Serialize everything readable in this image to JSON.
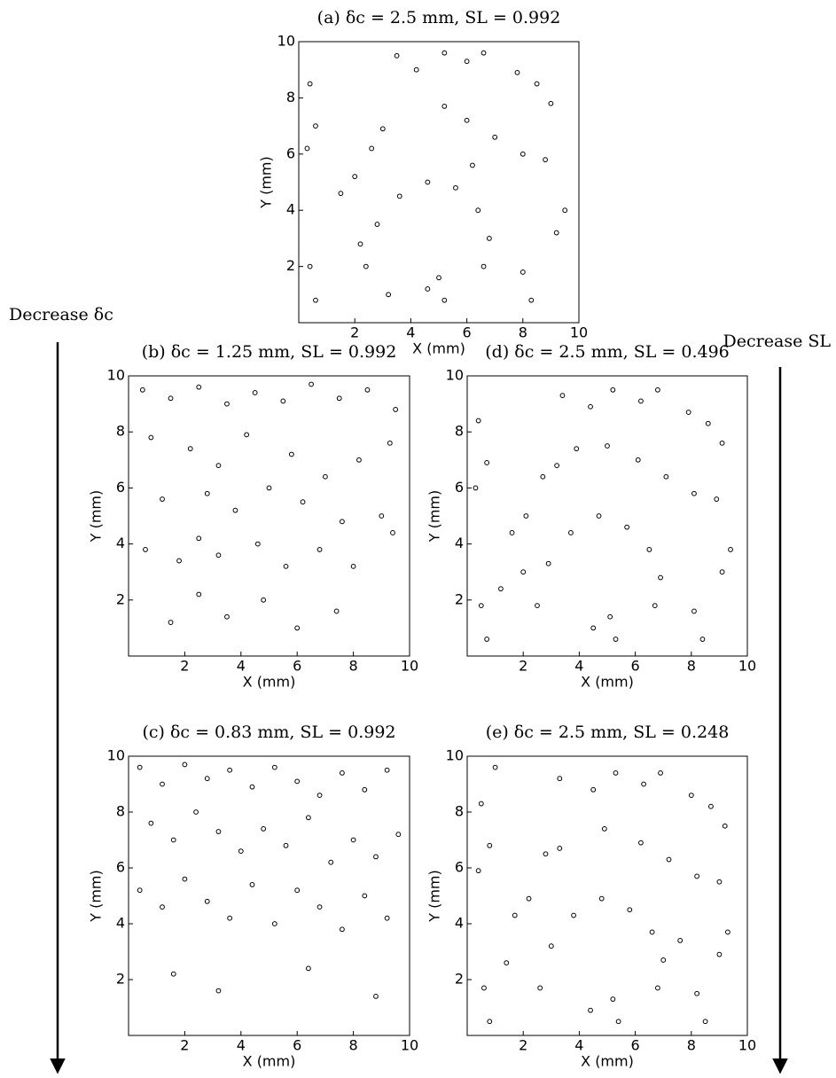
{
  "annotations": {
    "left": "Decrease δc",
    "right": "Decrease SL"
  },
  "chart_data": [
    {
      "type": "scatter",
      "title": "(a) δc = 2.5 mm, SL = 0.992",
      "xlabel": "X (mm)",
      "ylabel": "Y (mm)",
      "xlim": [
        0,
        10
      ],
      "ylim": [
        0,
        10
      ],
      "xticks": [
        2,
        4,
        6,
        8,
        10
      ],
      "yticks": [
        2,
        4,
        6,
        8,
        10
      ],
      "series": [
        {
          "color": "#000000",
          "x": [
            3.5,
            4.2,
            5.2,
            6.0,
            6.6,
            7.8,
            8.5,
            9.0,
            0.4,
            0.6,
            0.3,
            1.5,
            2.0,
            2.6,
            3.0,
            5.2,
            6.0,
            7.0,
            8.0,
            8.8,
            2.4,
            2.8,
            3.6,
            4.6,
            5.6,
            6.4,
            6.8,
            6.6,
            5.0,
            5.2,
            4.6,
            8.0,
            8.3,
            9.5,
            9.2,
            0.4,
            0.6,
            6.2,
            3.2,
            2.2
          ],
          "y": [
            9.5,
            9.0,
            9.6,
            9.3,
            9.6,
            8.9,
            8.5,
            7.8,
            8.5,
            7.0,
            6.2,
            4.6,
            5.2,
            6.2,
            6.9,
            7.7,
            7.2,
            6.6,
            6.0,
            5.8,
            2.0,
            3.5,
            4.5,
            5.0,
            4.8,
            4.0,
            3.0,
            2.0,
            1.6,
            0.8,
            1.2,
            1.8,
            0.8,
            4.0,
            3.2,
            2.0,
            0.8,
            5.6,
            1.0,
            2.8
          ]
        }
      ]
    },
    {
      "type": "scatter",
      "title": "(b) δc = 1.25 mm, SL = 0.992",
      "xlabel": "X (mm)",
      "ylabel": "Y (mm)",
      "xlim": [
        0,
        10
      ],
      "ylim": [
        0,
        10
      ],
      "xticks": [
        2,
        4,
        6,
        8,
        10
      ],
      "yticks": [
        2,
        4,
        6,
        8,
        10
      ],
      "series": [
        {
          "color": "#000000",
          "x": [
            0.5,
            1.5,
            2.5,
            3.5,
            4.5,
            5.5,
            6.5,
            7.5,
            8.5,
            9.5,
            0.8,
            2.2,
            3.2,
            4.2,
            5.8,
            7.0,
            8.2,
            9.3,
            1.2,
            2.8,
            3.8,
            5.0,
            6.2,
            7.6,
            9.0,
            0.6,
            1.8,
            2.5,
            3.2,
            4.6,
            5.6,
            6.8,
            8.0,
            9.4,
            1.5,
            2.5,
            3.5,
            4.8,
            6.0,
            7.4
          ],
          "y": [
            9.5,
            9.2,
            9.6,
            9.0,
            9.4,
            9.1,
            9.7,
            9.2,
            9.5,
            8.8,
            7.8,
            7.4,
            6.8,
            7.9,
            7.2,
            6.4,
            7.0,
            7.6,
            5.6,
            5.8,
            5.2,
            6.0,
            5.5,
            4.8,
            5.0,
            3.8,
            3.4,
            4.2,
            3.6,
            4.0,
            3.2,
            3.8,
            3.2,
            4.4,
            1.2,
            2.2,
            1.4,
            2.0,
            1.0,
            1.6
          ]
        }
      ]
    },
    {
      "type": "scatter",
      "title": "(d) δc = 2.5 mm, SL = 0.496",
      "xlabel": "X (mm)",
      "ylabel": "Y (mm)",
      "xlim": [
        0,
        10
      ],
      "ylim": [
        0,
        10
      ],
      "xticks": [
        2,
        4,
        6,
        8,
        10
      ],
      "yticks": [
        2,
        4,
        6,
        8,
        10
      ],
      "series": [
        {
          "color": "#000000",
          "x": [
            3.4,
            4.4,
            5.2,
            6.2,
            6.8,
            7.9,
            8.6,
            9.1,
            0.4,
            0.7,
            0.3,
            1.6,
            2.1,
            2.7,
            3.2,
            5.0,
            6.1,
            7.1,
            8.1,
            8.9,
            2.5,
            2.9,
            3.7,
            4.7,
            5.7,
            6.5,
            6.9,
            6.7,
            5.1,
            5.3,
            4.5,
            8.1,
            8.4,
            9.4,
            9.1,
            0.5,
            0.7,
            1.2,
            3.9,
            2.0
          ],
          "y": [
            9.3,
            8.9,
            9.5,
            9.1,
            9.5,
            8.7,
            8.3,
            7.6,
            8.4,
            6.9,
            6.0,
            4.4,
            5.0,
            6.4,
            6.8,
            7.5,
            7.0,
            6.4,
            5.8,
            5.6,
            1.8,
            3.3,
            4.4,
            5.0,
            4.6,
            3.8,
            2.8,
            1.8,
            1.4,
            0.6,
            1.0,
            1.6,
            0.6,
            3.8,
            3.0,
            1.8,
            0.6,
            2.4,
            7.4,
            3.0
          ]
        }
      ]
    },
    {
      "type": "scatter",
      "title": "(c) δc = 0.83 mm, SL = 0.992",
      "xlabel": "X (mm)",
      "ylabel": "Y (mm)",
      "xlim": [
        0,
        10
      ],
      "ylim": [
        0,
        10
      ],
      "xticks": [
        2,
        4,
        6,
        8,
        10
      ],
      "yticks": [
        2,
        4,
        6,
        8,
        10
      ],
      "series": [
        {
          "color": "#000000",
          "x": [
            0.4,
            1.2,
            2.0,
            2.8,
            3.6,
            4.4,
            5.2,
            6.0,
            6.8,
            7.6,
            8.4,
            9.2,
            0.8,
            1.6,
            2.4,
            3.2,
            4.0,
            4.8,
            5.6,
            6.4,
            7.2,
            8.0,
            8.8,
            9.6,
            0.4,
            1.2,
            2.0,
            2.8,
            3.6,
            4.4,
            5.2,
            6.0,
            6.8,
            7.6,
            8.4,
            9.2,
            1.6,
            3.2,
            6.4,
            8.8
          ],
          "y": [
            9.6,
            9.0,
            9.7,
            9.2,
            9.5,
            8.9,
            9.6,
            9.1,
            8.6,
            9.4,
            8.8,
            9.5,
            7.6,
            7.0,
            8.0,
            7.3,
            6.6,
            7.4,
            6.8,
            7.8,
            6.2,
            7.0,
            6.4,
            7.2,
            5.2,
            4.6,
            5.6,
            4.8,
            4.2,
            5.4,
            4.0,
            5.2,
            4.6,
            3.8,
            5.0,
            4.2,
            2.2,
            1.6,
            2.4,
            1.4
          ]
        }
      ]
    },
    {
      "type": "scatter",
      "title": "(e) δc = 2.5 mm, SL = 0.248",
      "xlabel": "X (mm)",
      "ylabel": "Y (mm)",
      "xlim": [
        0,
        10
      ],
      "ylim": [
        0,
        10
      ],
      "xticks": [
        2,
        4,
        6,
        8,
        10
      ],
      "yticks": [
        2,
        4,
        6,
        8,
        10
      ],
      "series": [
        {
          "color": "#000000",
          "x": [
            3.3,
            4.5,
            5.3,
            6.3,
            6.9,
            8.0,
            8.7,
            9.2,
            0.5,
            0.8,
            0.4,
            1.7,
            2.2,
            2.8,
            3.3,
            4.9,
            6.2,
            7.2,
            8.2,
            9.0,
            2.6,
            3.0,
            3.8,
            4.8,
            5.8,
            6.6,
            7.0,
            6.8,
            5.2,
            5.4,
            4.4,
            8.2,
            8.5,
            9.3,
            9.0,
            0.6,
            0.8,
            1.4,
            1.0,
            7.6
          ],
          "y": [
            9.2,
            8.8,
            9.4,
            9.0,
            9.4,
            8.6,
            8.2,
            7.5,
            8.3,
            6.8,
            5.9,
            4.3,
            4.9,
            6.5,
            6.7,
            7.4,
            6.9,
            6.3,
            5.7,
            5.5,
            1.7,
            3.2,
            4.3,
            4.9,
            4.5,
            3.7,
            2.7,
            1.7,
            1.3,
            0.5,
            0.9,
            1.5,
            0.5,
            3.7,
            2.9,
            1.7,
            0.5,
            2.6,
            9.6,
            3.4
          ]
        }
      ]
    }
  ]
}
